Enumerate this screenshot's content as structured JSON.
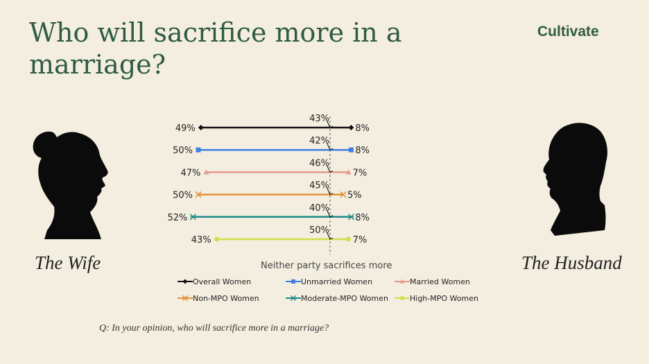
{
  "title": "Who will sacrifice more in a marriage?",
  "brand": "Cultivate",
  "left_label": "The Wife",
  "right_label": "The Husband",
  "question": "Q: In your opinion, who will sacrifice more in a marriage?",
  "chart_data": {
    "type": "dumbbell",
    "xlabel": "Neither party sacrifices more",
    "series": [
      {
        "name": "Overall Women",
        "wife": 49,
        "neither": 43,
        "husband": 8,
        "color": "#111111",
        "marker": "diamond"
      },
      {
        "name": "Unmarried Women",
        "wife": 50,
        "neither": 42,
        "husband": 8,
        "color": "#3d7fe6",
        "marker": "square"
      },
      {
        "name": "Married Women",
        "wife": 47,
        "neither": 46,
        "husband": 7,
        "color": "#e8998d",
        "marker": "triangle"
      },
      {
        "name": "Non-MPO Women",
        "wife": 50,
        "neither": 45,
        "husband": 5,
        "color": "#e58f3a",
        "marker": "x"
      },
      {
        "name": "Moderate-MPO Women",
        "wife": 52,
        "neither": 40,
        "husband": 8,
        "color": "#1f8a8a",
        "marker": "star"
      },
      {
        "name": "High-MPO Women",
        "wife": 43,
        "neither": 50,
        "husband": 7,
        "color": "#cfdf4a",
        "marker": "circle"
      }
    ],
    "value_suffix": "%"
  }
}
